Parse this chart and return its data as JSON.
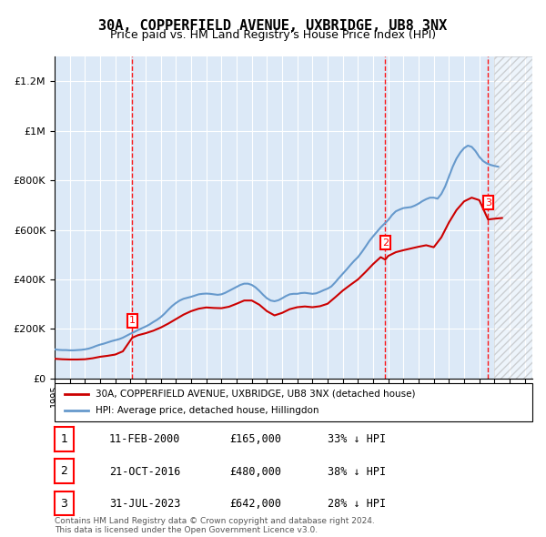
{
  "title": "30A, COPPERFIELD AVENUE, UXBRIDGE, UB8 3NX",
  "subtitle": "Price paid vs. HM Land Registry's House Price Index (HPI)",
  "ylabel": "",
  "background_color": "#ffffff",
  "plot_bg_color": "#dce9f7",
  "grid_color": "#ffffff",
  "hatch_color": "#c0c0c0",
  "sale_dates": [
    "2000-02-11",
    "2016-10-21",
    "2023-07-31"
  ],
  "sale_prices": [
    165000,
    480000,
    642000
  ],
  "sale_labels": [
    "1",
    "2",
    "3"
  ],
  "sale_pct": [
    "33% ↓ HPI",
    "38% ↓ HPI",
    "28% ↓ HPI"
  ],
  "sale_date_labels": [
    "11-FEB-2000",
    "21-OCT-2016",
    "31-JUL-2023"
  ],
  "legend_house_label": "30A, COPPERFIELD AVENUE, UXBRIDGE, UB8 3NX (detached house)",
  "legend_hpi_label": "HPI: Average price, detached house, Hillingdon",
  "footnote": "Contains HM Land Registry data © Crown copyright and database right 2024.\nThis data is licensed under the Open Government Licence v3.0.",
  "house_color": "#cc0000",
  "hpi_color": "#6699cc",
  "ylim": [
    0,
    1300000
  ],
  "yticks": [
    0,
    200000,
    400000,
    600000,
    800000,
    1000000,
    1200000
  ],
  "ytick_labels": [
    "£0",
    "£200K",
    "£400K",
    "£600K",
    "£800K",
    "£1M",
    "£1.2M"
  ],
  "xstart": 1995.0,
  "xend": 2026.5,
  "hpi_x": [
    1995.0,
    1995.25,
    1995.5,
    1995.75,
    1996.0,
    1996.25,
    1996.5,
    1996.75,
    1997.0,
    1997.25,
    1997.5,
    1997.75,
    1998.0,
    1998.25,
    1998.5,
    1998.75,
    1999.0,
    1999.25,
    1999.5,
    1999.75,
    2000.0,
    2000.25,
    2000.5,
    2000.75,
    2001.0,
    2001.25,
    2001.5,
    2001.75,
    2002.0,
    2002.25,
    2002.5,
    2002.75,
    2003.0,
    2003.25,
    2003.5,
    2003.75,
    2004.0,
    2004.25,
    2004.5,
    2004.75,
    2005.0,
    2005.25,
    2005.5,
    2005.75,
    2006.0,
    2006.25,
    2006.5,
    2006.75,
    2007.0,
    2007.25,
    2007.5,
    2007.75,
    2008.0,
    2008.25,
    2008.5,
    2008.75,
    2009.0,
    2009.25,
    2009.5,
    2009.75,
    2010.0,
    2010.25,
    2010.5,
    2010.75,
    2011.0,
    2011.25,
    2011.5,
    2011.75,
    2012.0,
    2012.25,
    2012.5,
    2012.75,
    2013.0,
    2013.25,
    2013.5,
    2013.75,
    2014.0,
    2014.25,
    2014.5,
    2014.75,
    2015.0,
    2015.25,
    2015.5,
    2015.75,
    2016.0,
    2016.25,
    2016.5,
    2016.75,
    2017.0,
    2017.25,
    2017.5,
    2017.75,
    2018.0,
    2018.25,
    2018.5,
    2018.75,
    2019.0,
    2019.25,
    2019.5,
    2019.75,
    2020.0,
    2020.25,
    2020.5,
    2020.75,
    2021.0,
    2021.25,
    2021.5,
    2021.75,
    2022.0,
    2022.25,
    2022.5,
    2022.75,
    2023.0,
    2023.25,
    2023.5,
    2023.75,
    2024.0,
    2024.25
  ],
  "hpi_y": [
    118000,
    116000,
    115000,
    115000,
    114000,
    114000,
    115000,
    116000,
    118000,
    121000,
    126000,
    132000,
    137000,
    141000,
    146000,
    151000,
    155000,
    159000,
    165000,
    173000,
    181000,
    188000,
    196000,
    203000,
    210000,
    218000,
    228000,
    237000,
    248000,
    262000,
    278000,
    293000,
    305000,
    315000,
    322000,
    326000,
    330000,
    335000,
    340000,
    342000,
    343000,
    342000,
    340000,
    338000,
    340000,
    346000,
    354000,
    362000,
    370000,
    378000,
    383000,
    383000,
    378000,
    368000,
    354000,
    338000,
    324000,
    315000,
    312000,
    316000,
    324000,
    333000,
    340000,
    342000,
    342000,
    345000,
    346000,
    344000,
    342000,
    344000,
    350000,
    357000,
    363000,
    372000,
    388000,
    406000,
    423000,
    440000,
    458000,
    475000,
    490000,
    510000,
    532000,
    555000,
    574000,
    592000,
    610000,
    625000,
    640000,
    660000,
    675000,
    682000,
    688000,
    690000,
    692000,
    698000,
    706000,
    716000,
    724000,
    730000,
    730000,
    726000,
    745000,
    775000,
    815000,
    855000,
    888000,
    912000,
    930000,
    940000,
    935000,
    918000,
    895000,
    878000,
    868000,
    862000,
    858000,
    855000
  ],
  "house_x": [
    1995.0,
    1995.5,
    1996.0,
    1996.5,
    1997.0,
    1997.5,
    1998.0,
    1998.5,
    1999.0,
    1999.5,
    2000.12,
    2000.5,
    2001.0,
    2001.5,
    2002.0,
    2002.5,
    2003.0,
    2003.5,
    2004.0,
    2004.5,
    2005.0,
    2005.5,
    2006.0,
    2006.5,
    2007.0,
    2007.5,
    2008.0,
    2008.5,
    2009.0,
    2009.5,
    2010.0,
    2010.5,
    2011.0,
    2011.5,
    2012.0,
    2012.5,
    2013.0,
    2013.5,
    2014.0,
    2014.5,
    2015.0,
    2015.5,
    2016.0,
    2016.5,
    2016.8,
    2017.0,
    2017.5,
    2018.0,
    2018.5,
    2019.0,
    2019.5,
    2020.0,
    2020.5,
    2021.0,
    2021.5,
    2022.0,
    2022.5,
    2023.0,
    2023.58,
    2024.0,
    2024.5
  ],
  "house_y": [
    80000,
    78000,
    77000,
    77000,
    78000,
    82000,
    88000,
    92000,
    97000,
    110000,
    165000,
    175000,
    183000,
    193000,
    206000,
    222000,
    240000,
    258000,
    272000,
    282000,
    287000,
    285000,
    284000,
    290000,
    302000,
    315000,
    315000,
    298000,
    272000,
    255000,
    265000,
    280000,
    288000,
    291000,
    288000,
    292000,
    302000,
    328000,
    355000,
    378000,
    400000,
    430000,
    462000,
    490000,
    480000,
    495000,
    510000,
    518000,
    525000,
    532000,
    538000,
    530000,
    570000,
    630000,
    680000,
    715000,
    730000,
    720000,
    642000,
    645000,
    648000
  ]
}
